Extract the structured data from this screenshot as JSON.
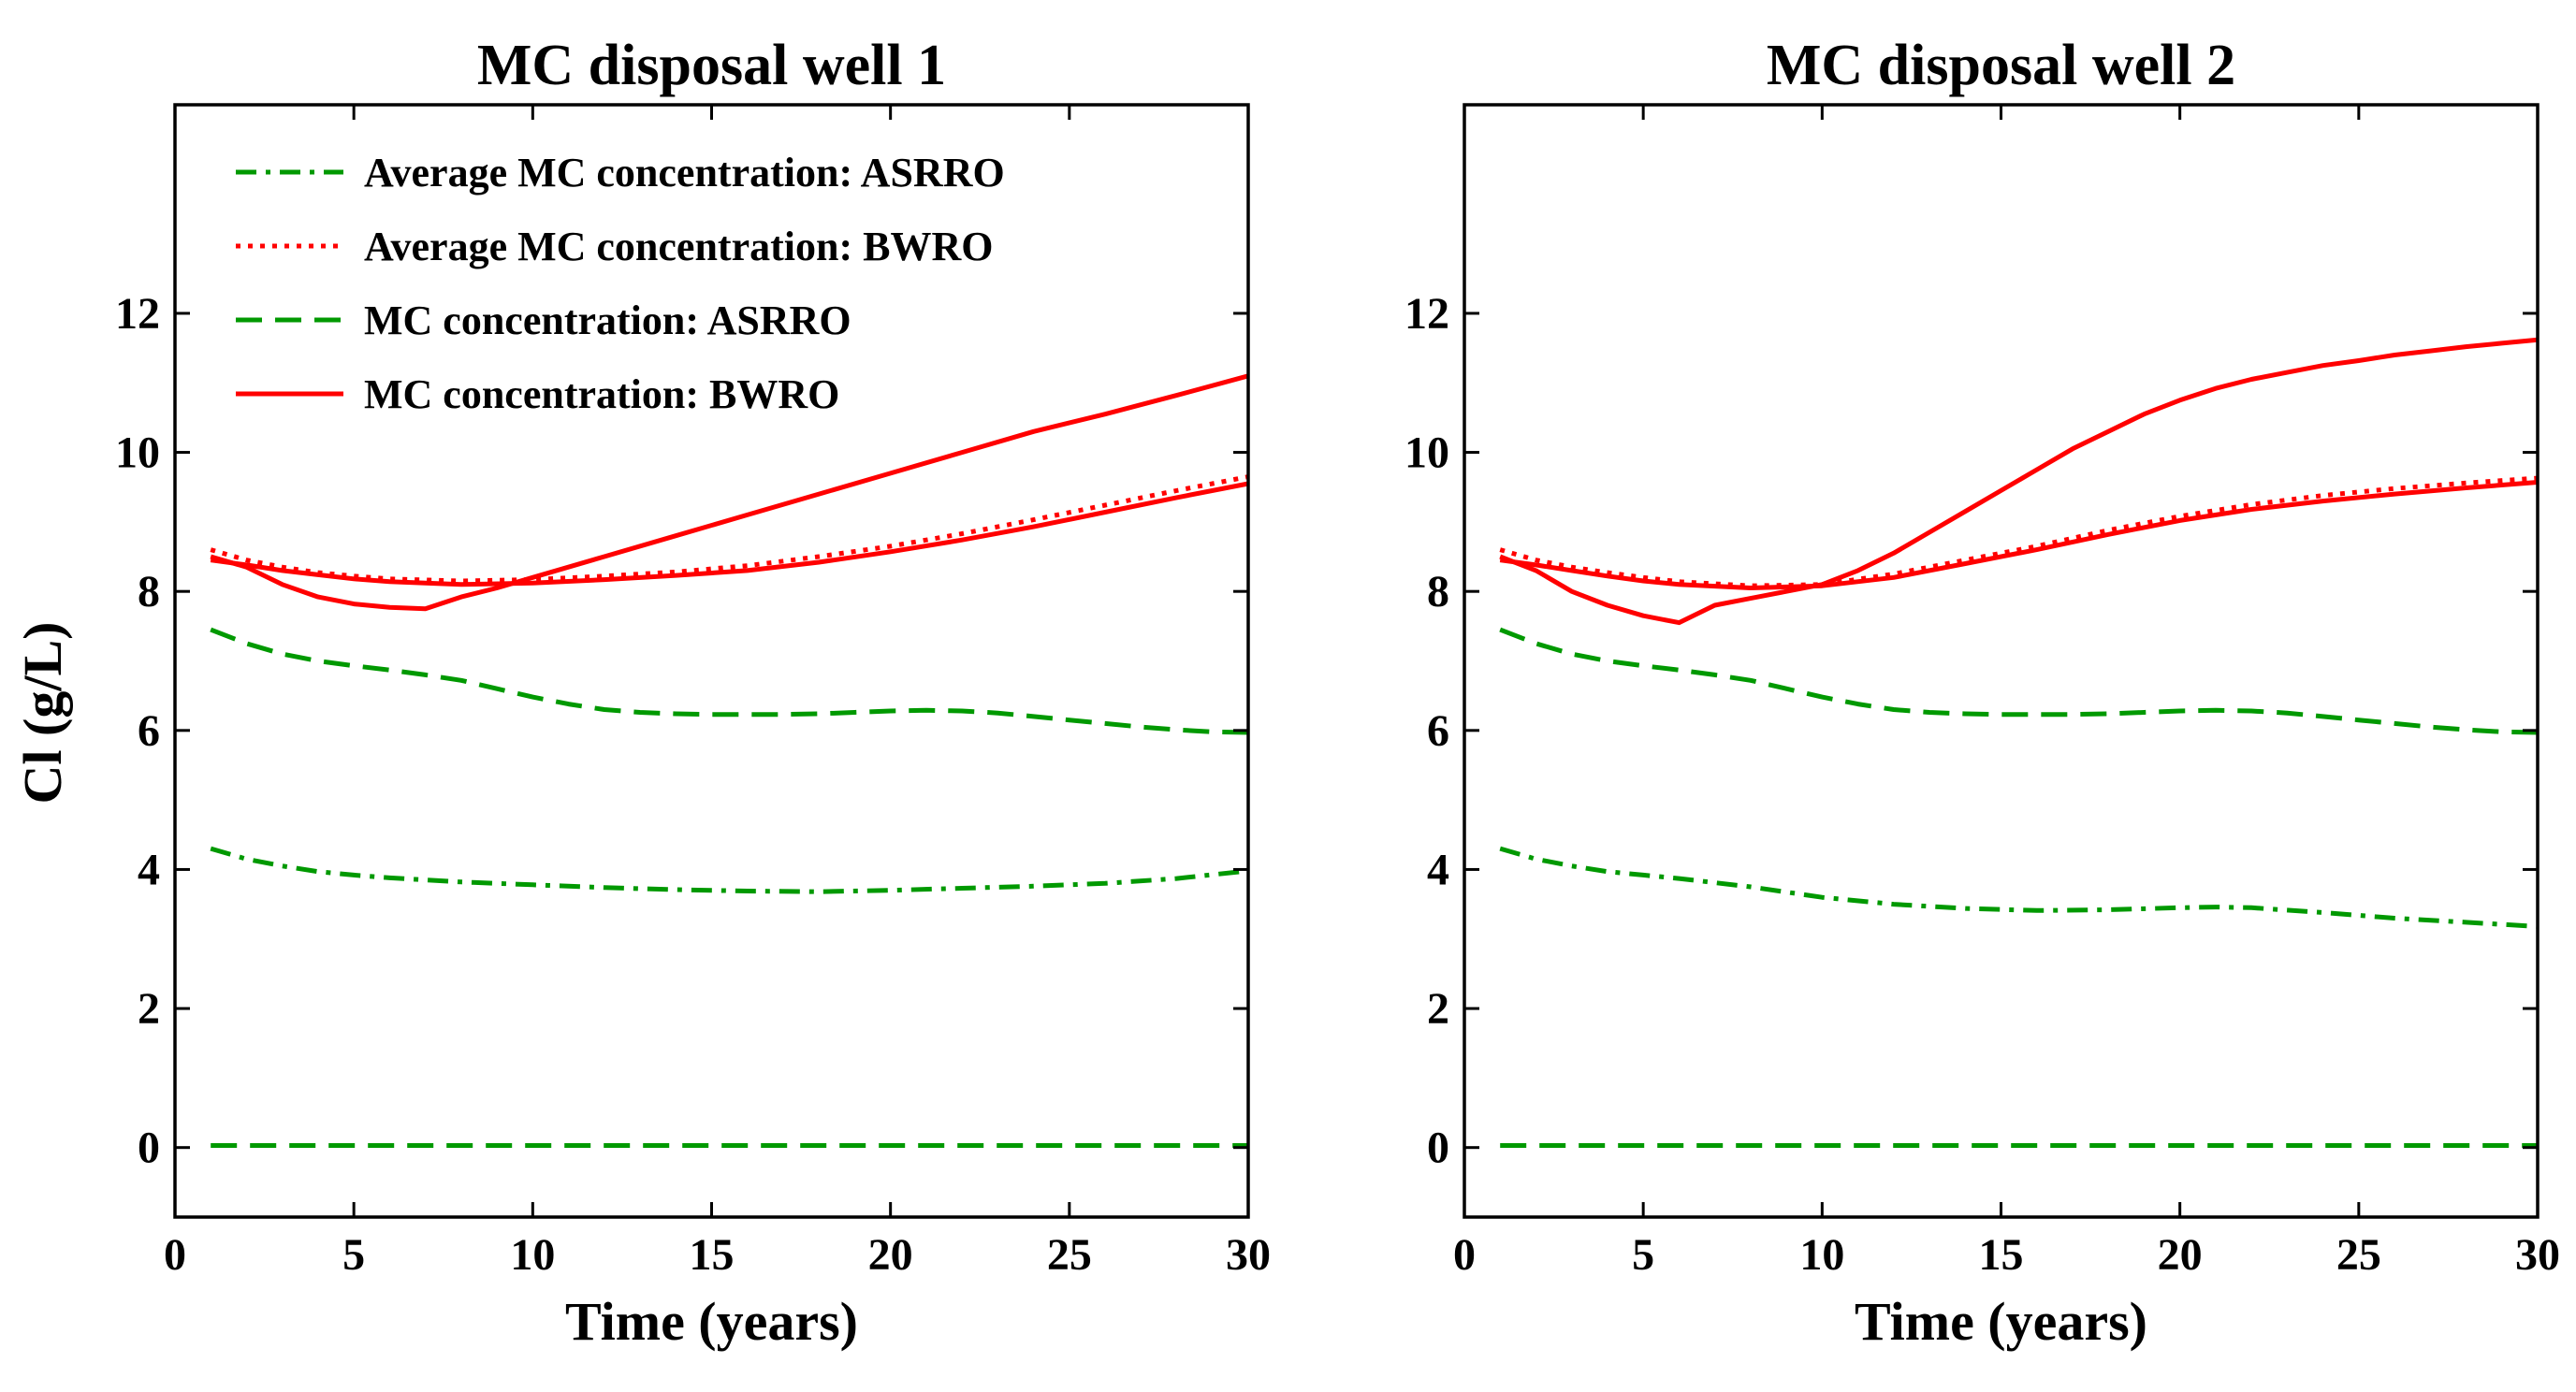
{
  "figure": {
    "shared_ylabel": "Cl (g/L)"
  },
  "chart_data": [
    {
      "type": "line",
      "title": "MC disposal well 1",
      "xlabel": "Time (years)",
      "ylabel": "Cl (g/L)",
      "xlim": [
        0,
        30
      ],
      "ylim": [
        -1,
        15
      ],
      "xticks": [
        0,
        5,
        10,
        15,
        20,
        25,
        30
      ],
      "yticks": [
        0,
        2,
        4,
        6,
        8,
        10,
        12
      ],
      "legend_position": "top-left",
      "series": [
        {
          "id": "avg_asrro",
          "name": "Average MC concentration: ASRRO",
          "color": "#009900",
          "style": "dashdot",
          "x": [
            1,
            2,
            3,
            4,
            5,
            6,
            8,
            10,
            12,
            14,
            16,
            18,
            20,
            22,
            24,
            26,
            28,
            30
          ],
          "y": [
            4.3,
            4.15,
            4.05,
            3.97,
            3.92,
            3.88,
            3.82,
            3.78,
            3.74,
            3.71,
            3.69,
            3.68,
            3.7,
            3.73,
            3.76,
            3.8,
            3.87,
            3.98
          ]
        },
        {
          "id": "avg_bwro",
          "name": "Average MC concentration: BWRO",
          "color": "#ff0000",
          "style": "dotted",
          "x": [
            1,
            2,
            3,
            4,
            5,
            6,
            8,
            10,
            12,
            14,
            16,
            18,
            20,
            22,
            24,
            26,
            28,
            30
          ],
          "y": [
            8.6,
            8.45,
            8.35,
            8.27,
            8.22,
            8.18,
            8.15,
            8.17,
            8.22,
            8.28,
            8.37,
            8.5,
            8.65,
            8.83,
            9.03,
            9.24,
            9.45,
            9.65
          ]
        },
        {
          "id": "mc_asrro",
          "name": "MC concentration: ASRRO",
          "color": "#009900",
          "style": "dashed",
          "x": [
            1,
            2,
            3,
            4,
            5,
            6,
            7,
            8,
            9,
            10,
            11,
            12,
            13,
            14,
            15,
            16,
            17,
            18,
            19,
            20,
            21,
            22,
            23,
            24,
            25,
            26,
            27,
            28,
            29,
            30
          ],
          "y": [
            7.45,
            7.25,
            7.1,
            7.0,
            6.93,
            6.87,
            6.8,
            6.72,
            6.6,
            6.48,
            6.38,
            6.3,
            6.26,
            6.24,
            6.23,
            6.23,
            6.23,
            6.24,
            6.26,
            6.28,
            6.29,
            6.28,
            6.25,
            6.2,
            6.15,
            6.1,
            6.05,
            6.01,
            5.98,
            5.97
          ]
        },
        {
          "id": "mc_bwro_a",
          "name": "MC concentration: BWRO",
          "color": "#ff0000",
          "style": "solid",
          "x": [
            1,
            2,
            3,
            4,
            5,
            6,
            7,
            8,
            9,
            10,
            12,
            14,
            16,
            18,
            20,
            22,
            24,
            26,
            28,
            30
          ],
          "y": [
            8.5,
            8.35,
            8.1,
            7.92,
            7.82,
            7.77,
            7.75,
            7.92,
            8.05,
            8.2,
            8.5,
            8.8,
            9.1,
            9.4,
            9.7,
            10.0,
            10.3,
            10.55,
            10.82,
            11.1
          ]
        },
        {
          "id": "mc_bwro_b",
          "name": "",
          "color": "#ff0000",
          "style": "solid",
          "x": [
            1,
            2,
            3,
            4,
            5,
            6,
            8,
            10,
            12,
            14,
            16,
            18,
            20,
            22,
            24,
            26,
            28,
            30
          ],
          "y": [
            8.45,
            8.38,
            8.3,
            8.24,
            8.18,
            8.14,
            8.1,
            8.12,
            8.17,
            8.23,
            8.3,
            8.42,
            8.57,
            8.74,
            8.93,
            9.14,
            9.35,
            9.55
          ]
        },
        {
          "id": "zero_line",
          "name": "",
          "color": "#009900",
          "style": "dashed",
          "x": [
            1,
            30
          ],
          "y": [
            0.03,
            0.03
          ]
        }
      ]
    },
    {
      "type": "line",
      "title": "MC disposal well 2",
      "xlabel": "Time (years)",
      "ylabel": "",
      "xlim": [
        0,
        30
      ],
      "ylim": [
        -1,
        15
      ],
      "xticks": [
        0,
        5,
        10,
        15,
        20,
        25,
        30
      ],
      "yticks": [
        0,
        2,
        4,
        6,
        8,
        10,
        12
      ],
      "legend_position": "",
      "series": [
        {
          "id": "avg_asrro",
          "name": "",
          "color": "#009900",
          "style": "dashdot",
          "x": [
            1,
            2,
            3,
            4,
            5,
            6,
            8,
            10,
            12,
            14,
            16,
            18,
            20,
            21,
            22,
            24,
            26,
            28,
            30
          ],
          "y": [
            4.3,
            4.15,
            4.05,
            3.97,
            3.92,
            3.87,
            3.75,
            3.6,
            3.5,
            3.44,
            3.41,
            3.42,
            3.45,
            3.46,
            3.45,
            3.38,
            3.3,
            3.24,
            3.18
          ]
        },
        {
          "id": "avg_bwro",
          "name": "",
          "color": "#ff0000",
          "style": "dotted",
          "x": [
            1,
            2,
            3,
            4,
            5,
            6,
            8,
            10,
            12,
            14,
            16,
            18,
            20,
            22,
            24,
            26,
            28,
            30
          ],
          "y": [
            8.6,
            8.45,
            8.35,
            8.27,
            8.2,
            8.14,
            8.08,
            8.1,
            8.25,
            8.45,
            8.65,
            8.88,
            9.08,
            9.25,
            9.38,
            9.48,
            9.56,
            9.63
          ]
        },
        {
          "id": "mc_asrro",
          "name": "",
          "color": "#009900",
          "style": "dashed",
          "x": [
            1,
            2,
            3,
            4,
            5,
            6,
            7,
            8,
            9,
            10,
            11,
            12,
            13,
            14,
            15,
            16,
            17,
            18,
            19,
            20,
            21,
            22,
            23,
            24,
            25,
            26,
            27,
            28,
            29,
            30
          ],
          "y": [
            7.45,
            7.25,
            7.1,
            7.0,
            6.93,
            6.87,
            6.8,
            6.72,
            6.6,
            6.48,
            6.38,
            6.3,
            6.26,
            6.24,
            6.23,
            6.23,
            6.23,
            6.24,
            6.26,
            6.28,
            6.29,
            6.28,
            6.25,
            6.2,
            6.15,
            6.1,
            6.05,
            6.01,
            5.98,
            5.97
          ]
        },
        {
          "id": "mc_bwro_a",
          "name": "",
          "color": "#ff0000",
          "style": "solid",
          "x": [
            1,
            2,
            3,
            4,
            5,
            6,
            7,
            8,
            9,
            10,
            11,
            12,
            13,
            14,
            15,
            16,
            17,
            18,
            19,
            20,
            21,
            22,
            23,
            24,
            25,
            26,
            27,
            28,
            29,
            30
          ],
          "y": [
            8.5,
            8.3,
            8.0,
            7.8,
            7.65,
            7.55,
            7.8,
            7.9,
            8.0,
            8.1,
            8.3,
            8.55,
            8.85,
            9.15,
            9.45,
            9.75,
            10.05,
            10.3,
            10.55,
            10.75,
            10.92,
            11.05,
            11.15,
            11.25,
            11.32,
            11.4,
            11.46,
            11.52,
            11.57,
            11.62
          ]
        },
        {
          "id": "mc_bwro_b",
          "name": "",
          "color": "#ff0000",
          "style": "solid",
          "x": [
            1,
            2,
            3,
            4,
            5,
            6,
            8,
            10,
            12,
            14,
            16,
            18,
            20,
            22,
            24,
            26,
            28,
            30
          ],
          "y": [
            8.45,
            8.38,
            8.3,
            8.22,
            8.15,
            8.1,
            8.05,
            8.08,
            8.2,
            8.4,
            8.6,
            8.82,
            9.02,
            9.18,
            9.3,
            9.4,
            9.49,
            9.57
          ]
        },
        {
          "id": "zero_line",
          "name": "",
          "color": "#009900",
          "style": "dashed",
          "x": [
            1,
            30
          ],
          "y": [
            0.03,
            0.03
          ]
        }
      ]
    }
  ]
}
